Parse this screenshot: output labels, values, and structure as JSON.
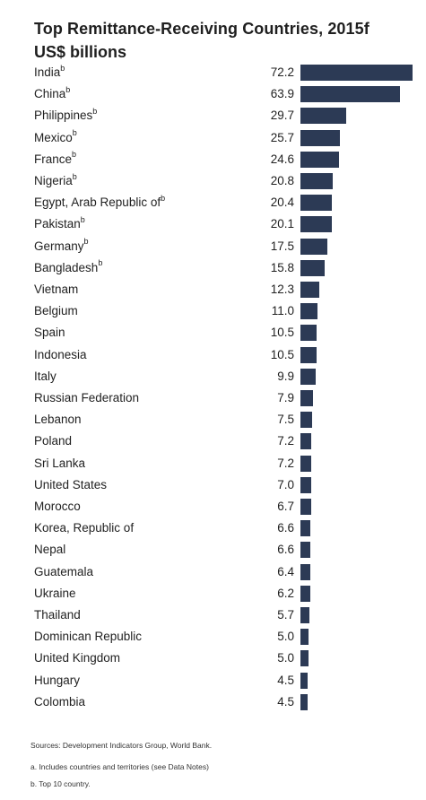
{
  "title": "Top Remittance-Receiving Countries, 2015f",
  "subtitle": "US$ billions",
  "bar_color": "#2c3a55",
  "chart_data": {
    "type": "bar",
    "orientation": "horizontal",
    "title": "Top Remittance-Receiving Countries, 2015f",
    "unit": "US$ billions",
    "xlim": [
      0,
      72.2
    ],
    "grid": false,
    "legend": "none",
    "categories": [
      "India",
      "China",
      "Philippines",
      "Mexico",
      "France",
      "Nigeria",
      "Egypt, Arab Republic of",
      "Pakistan",
      "Germany",
      "Bangladesh",
      "Vietnam",
      "Belgium",
      "Spain",
      "Indonesia",
      "Italy",
      "Russian Federation",
      "Lebanon",
      "Poland",
      "Sri Lanka",
      "United States",
      "Morocco",
      "Korea, Republic of",
      "Nepal",
      "Guatemala",
      "Ukraine",
      "Thailand",
      "Dominican Republic",
      "United Kingdom",
      "Hungary",
      "Colombia"
    ],
    "values": [
      72.2,
      63.9,
      29.7,
      25.7,
      24.6,
      20.8,
      20.4,
      20.1,
      17.5,
      15.8,
      12.3,
      11.0,
      10.5,
      10.5,
      9.9,
      7.9,
      7.5,
      7.2,
      7.2,
      7.0,
      6.7,
      6.6,
      6.6,
      6.4,
      6.2,
      5.7,
      5.0,
      5.0,
      4.5,
      4.5
    ],
    "value_labels": [
      "72.2",
      "63.9",
      "29.7",
      "25.7",
      "24.6",
      "20.8",
      "20.4",
      "20.1",
      "17.5",
      "15.8",
      "12.3",
      "11.0",
      "10.5",
      "10.5",
      "9.9",
      "7.9",
      "7.5",
      "7.2",
      "7.2",
      "7.0",
      "6.7",
      "6.6",
      "6.6",
      "6.4",
      "6.2",
      "5.7",
      "5.0",
      "5.0",
      "4.5",
      "4.5"
    ],
    "top10_marker": "b"
  },
  "footnotes": {
    "sources": "Sources: Development Indicators Group, World Bank.",
    "note_a": "a. Includes countries and territories (see Data Notes)",
    "note_b": "b. Top 10 country."
  }
}
